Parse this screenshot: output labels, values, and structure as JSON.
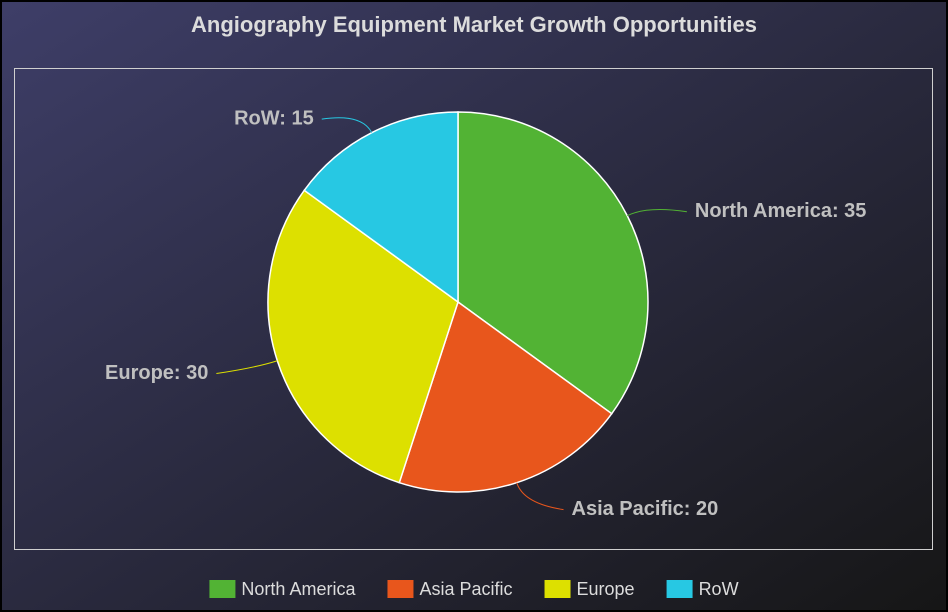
{
  "chart_data": {
    "type": "pie",
    "title": "Angiography Equipment Market Growth Opportunities",
    "categories": [
      "North America",
      "Asia Pacific",
      "Europe",
      "RoW"
    ],
    "values": [
      35,
      20,
      30,
      15
    ],
    "value_labels": [
      "North America: 35",
      "Asia Pacific: 20",
      "Europe: 30",
      "RoW: 15"
    ],
    "colors": [
      "#52b334",
      "#e8561c",
      "#dde000",
      "#27c8e3"
    ],
    "legend": "bottom"
  }
}
